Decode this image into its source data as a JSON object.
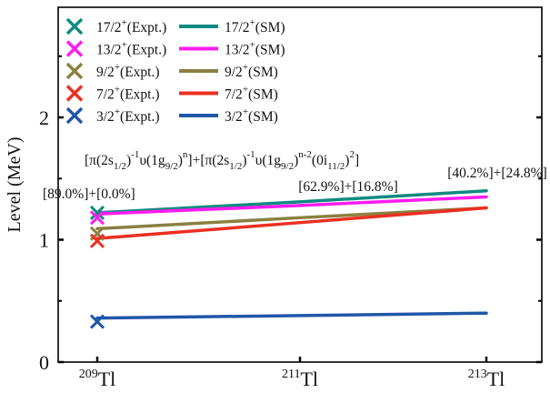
{
  "chart_data": {
    "type": "line",
    "ylabel": "Level (MeV)",
    "ylim": [
      0,
      2.9
    ],
    "yticks": [
      "0",
      "1",
      "2"
    ],
    "categories": [
      {
        "mass": "209",
        "element": "Tl"
      },
      {
        "mass": "211",
        "element": "Tl"
      },
      {
        "mass": "213",
        "element": "Tl"
      }
    ],
    "series": [
      {
        "name": "17/2+",
        "color": "#0f8a80",
        "sm_values": [
          1.22,
          1.31,
          1.4
        ],
        "expt_values": [
          1.22,
          null,
          null
        ]
      },
      {
        "name": "13/2+",
        "color": "#ff1cf0",
        "sm_values": [
          1.21,
          1.28,
          1.35
        ],
        "expt_values": [
          1.18,
          null,
          null
        ]
      },
      {
        "name": "9/2+",
        "color": "#8a8040",
        "sm_values": [
          1.09,
          1.18,
          1.26
        ],
        "expt_values": [
          1.05,
          null,
          null
        ]
      },
      {
        "name": "7/2+",
        "color": "#ec2f21",
        "sm_values": [
          1.01,
          1.14,
          1.26
        ],
        "expt_values": [
          0.99,
          null,
          null
        ]
      },
      {
        "name": "3/2+",
        "color": "#1f57a8",
        "sm_values": [
          0.36,
          0.38,
          0.4
        ],
        "expt_values": [
          0.33,
          null,
          null
        ]
      }
    ],
    "legend": {
      "placement": "top-left",
      "rows": [
        {
          "series": 0,
          "expt": "17/2",
          "sm": "17/2",
          "expt_suffix": "(Expt.)",
          "sm_suffix": "(SM)"
        },
        {
          "series": 1,
          "expt": "13/2",
          "sm": "13/2",
          "expt_suffix": "(Expt.)",
          "sm_suffix": "(SM)"
        },
        {
          "series": 2,
          "expt": "9/2",
          "sm": "9/2",
          "expt_suffix": "(Expt.)",
          "sm_suffix": "(SM)"
        },
        {
          "series": 3,
          "expt": "7/2",
          "sm": "7/2",
          "expt_suffix": "(Expt.)",
          "sm_suffix": "(SM)"
        },
        {
          "series": 4,
          "expt": "3/2",
          "sm": "3/2",
          "expt_suffix": "(Expt.)",
          "sm_suffix": "(SM)"
        }
      ],
      "parity": "+"
    },
    "formula": {
      "parts": [
        {
          "t": "[π(2s"
        },
        {
          "t": "1/2",
          "s": "sub"
        },
        {
          "t": ")"
        },
        {
          "t": "-1",
          "s": "sup"
        },
        {
          "t": "υ(1g"
        },
        {
          "t": "9/2",
          "s": "sub"
        },
        {
          "t": ")"
        },
        {
          "t": "n",
          "s": "sup"
        },
        {
          "t": "]+[π(2s"
        },
        {
          "t": "1/2",
          "s": "sub"
        },
        {
          "t": ")"
        },
        {
          "t": "-1",
          "s": "sup"
        },
        {
          "t": "υ(1g"
        },
        {
          "t": "9/2",
          "s": "sub"
        },
        {
          "t": ")"
        },
        {
          "t": "n-2",
          "s": "sup"
        },
        {
          "t": "(0i"
        },
        {
          "t": "11/2",
          "s": "sub"
        },
        {
          "t": ")"
        },
        {
          "t": "2",
          "s": "sup"
        },
        {
          "t": "]"
        }
      ]
    },
    "annotations": [
      "[89.0%]+[0.0%]",
      "[62.9%]+[16.8%]",
      "[40.2%]+[24.8%]"
    ]
  }
}
